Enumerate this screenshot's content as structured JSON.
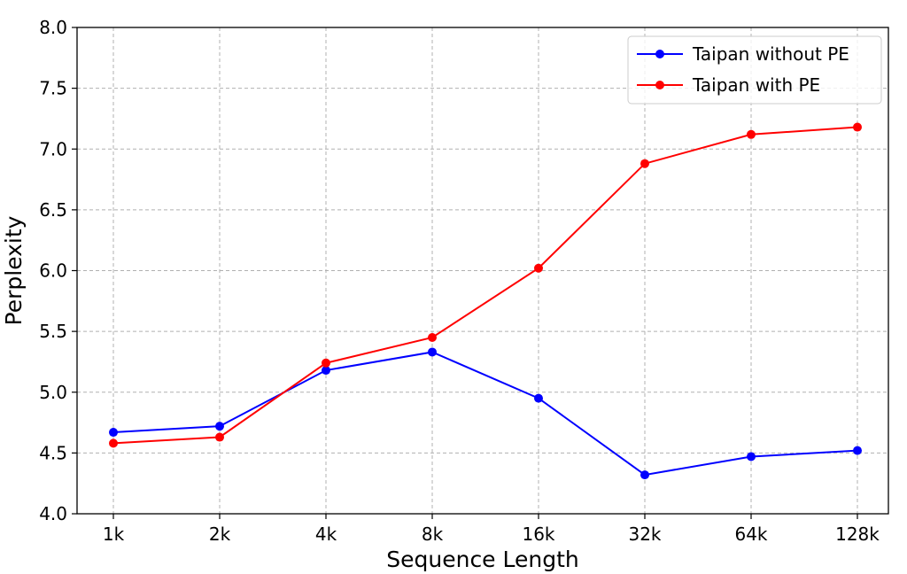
{
  "chart_data": {
    "type": "line",
    "title": "",
    "xlabel": "Sequence Length",
    "ylabel": "Perplexity",
    "categories": [
      "1k",
      "2k",
      "4k",
      "8k",
      "16k",
      "32k",
      "64k",
      "128k"
    ],
    "ylim": [
      4.0,
      8.0
    ],
    "yticks": [
      "4.0",
      "4.5",
      "5.0",
      "5.5",
      "6.0",
      "6.5",
      "7.0",
      "7.5",
      "8.0"
    ],
    "grid": true,
    "legend_position": "top-right",
    "series": [
      {
        "name": "Taipan without PE",
        "color": "#0000ff",
        "values": [
          4.67,
          4.72,
          5.18,
          5.33,
          4.95,
          4.32,
          4.47,
          4.52
        ]
      },
      {
        "name": "Taipan with PE",
        "color": "#ff0000",
        "values": [
          4.58,
          4.63,
          5.24,
          5.45,
          6.02,
          6.88,
          7.12,
          7.18
        ]
      }
    ]
  }
}
